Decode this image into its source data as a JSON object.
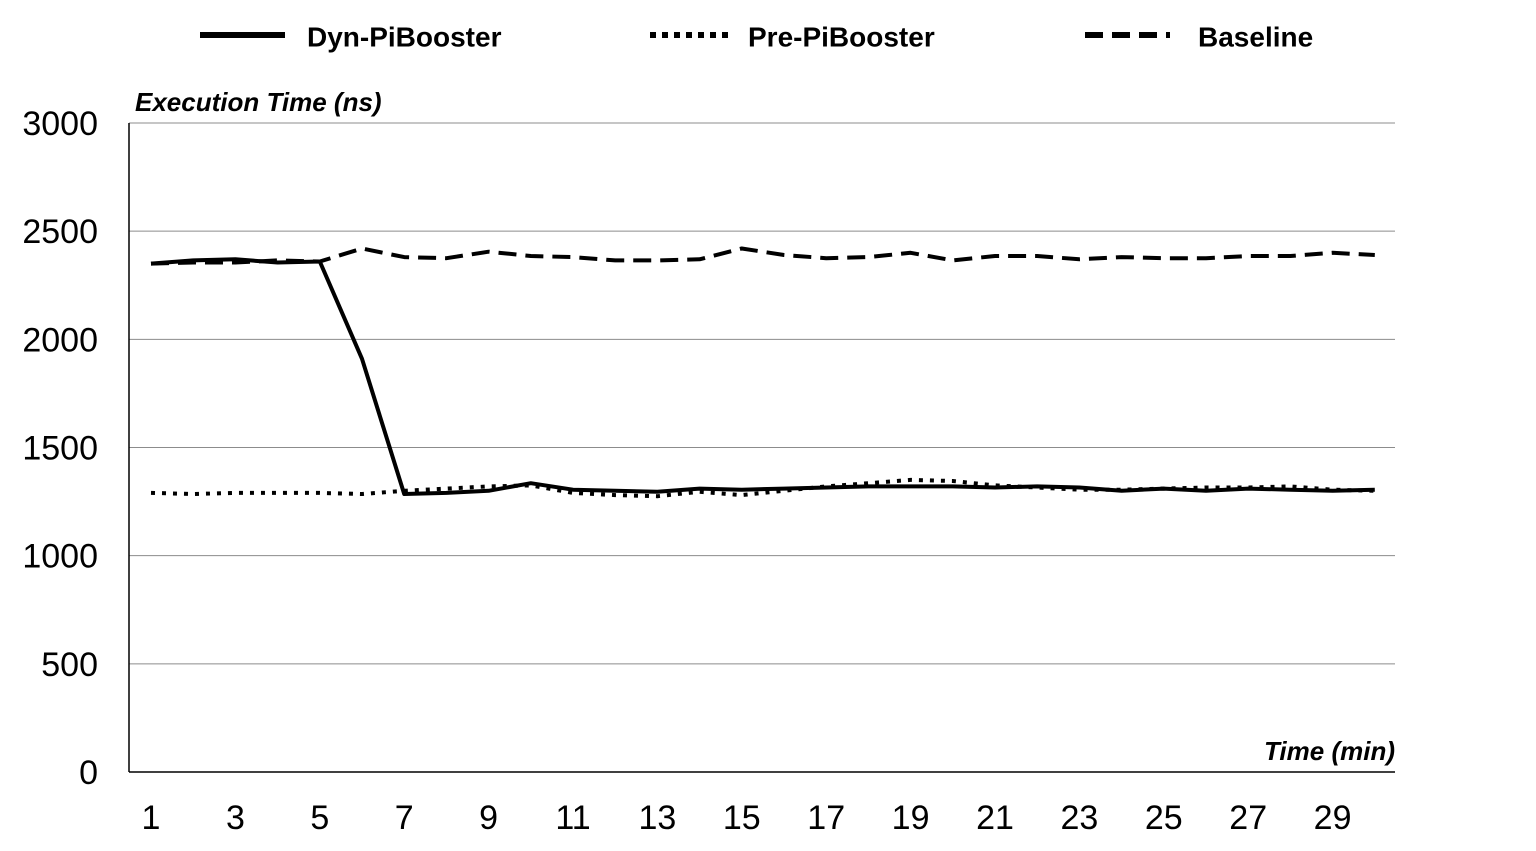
{
  "chart_data": {
    "type": "line",
    "xlabel": "Time (min)",
    "ylabel": "Execution Time (ns)",
    "ylim": [
      0,
      3000
    ],
    "y_ticks": [
      0,
      500,
      1000,
      1500,
      2000,
      2500,
      3000
    ],
    "x_tick_labels": [
      1,
      3,
      5,
      7,
      9,
      11,
      13,
      15,
      17,
      19,
      21,
      23,
      25,
      27,
      29
    ],
    "x": [
      1,
      2,
      3,
      4,
      5,
      6,
      7,
      8,
      9,
      10,
      11,
      12,
      13,
      14,
      15,
      16,
      17,
      18,
      19,
      20,
      21,
      22,
      23,
      24,
      25,
      26,
      27,
      28,
      29,
      30
    ],
    "grid": "horizontal",
    "legend_position": "top",
    "series": [
      {
        "name": "Dyn-PiBooster",
        "style": "solid",
        "color": "#000000",
        "values": [
          2350,
          2365,
          2370,
          2355,
          2360,
          1910,
          1285,
          1290,
          1300,
          1335,
          1305,
          1300,
          1295,
          1310,
          1305,
          1310,
          1315,
          1320,
          1320,
          1320,
          1315,
          1320,
          1315,
          1300,
          1310,
          1300,
          1310,
          1305,
          1300,
          1305
        ]
      },
      {
        "name": "Pre-PiBooster",
        "style": "dotted",
        "color": "#000000",
        "values": [
          1290,
          1285,
          1290,
          1290,
          1290,
          1285,
          1300,
          1310,
          1320,
          1325,
          1290,
          1280,
          1275,
          1295,
          1280,
          1300,
          1320,
          1335,
          1350,
          1345,
          1325,
          1315,
          1305,
          1305,
          1310,
          1315,
          1315,
          1320,
          1305,
          1300
        ]
      },
      {
        "name": "Baseline",
        "style": "dashed",
        "color": "#000000",
        "values": [
          2350,
          2355,
          2355,
          2365,
          2360,
          2420,
          2380,
          2375,
          2405,
          2385,
          2380,
          2365,
          2365,
          2370,
          2420,
          2390,
          2375,
          2380,
          2400,
          2365,
          2385,
          2385,
          2370,
          2380,
          2375,
          2375,
          2385,
          2385,
          2400,
          2390
        ]
      }
    ]
  }
}
